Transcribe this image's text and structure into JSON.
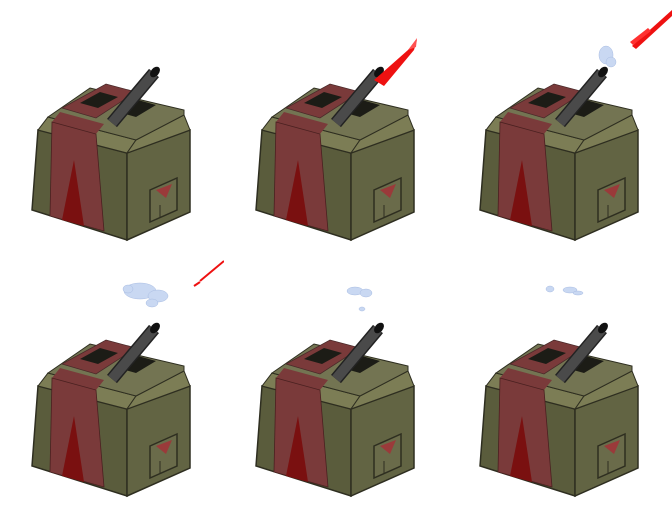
{
  "sprite_sheet": {
    "subject": "missile-launcher-bunker",
    "frames": [
      {
        "effect": "none"
      },
      {
        "effect": "missile"
      },
      {
        "effect": "launch-smoke-and-exhaust"
      },
      {
        "effect": "smoke-puff-and-exhaust-trail"
      },
      {
        "effect": "dissipating-smoke"
      },
      {
        "effect": "faint-smoke"
      }
    ]
  },
  "colors": {
    "body_left": "#5a5c3c",
    "body_right": "#626443",
    "roof": "#7c7d55",
    "stripe": "#7a3a3a",
    "stripe_dark": "#6e1a1a",
    "triangle": "#7a1010",
    "barrel": "#4a4a4a",
    "missile": "#ee1111",
    "smoke": "#c9d8f2",
    "outline": "#2e2e20"
  }
}
